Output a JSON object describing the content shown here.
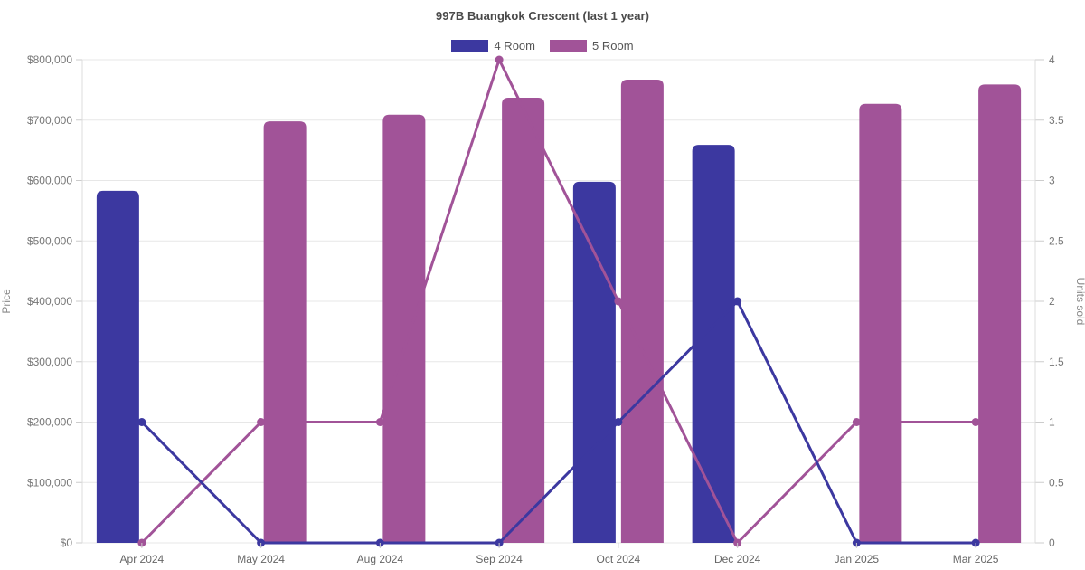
{
  "chart_data": {
    "type": "bar",
    "title": "997B Buangkok Crescent (last 1 year)",
    "categories": [
      "Apr 2024",
      "May 2024",
      "Aug 2024",
      "Sep 2024",
      "Oct 2024",
      "Dec 2024",
      "Jan 2025",
      "Mar 2025"
    ],
    "series": [
      {
        "name": "4 Room",
        "render": "bar",
        "axis": "price",
        "color": "#3c38a0",
        "values": [
          583000,
          null,
          null,
          null,
          598000,
          659000,
          null,
          null
        ]
      },
      {
        "name": "5 Room",
        "render": "bar",
        "axis": "price",
        "color": "#a15398",
        "values": [
          null,
          698000,
          709000,
          737000,
          767000,
          null,
          727000,
          759000
        ]
      },
      {
        "name": "4 Room",
        "render": "line",
        "axis": "units",
        "color": "#3c38a0",
        "values": [
          1,
          0,
          0,
          0,
          1,
          2,
          0,
          0
        ]
      },
      {
        "name": "5 Room",
        "render": "line",
        "axis": "units",
        "color": "#a15398",
        "values": [
          0,
          1,
          1,
          4,
          2,
          0,
          1,
          1
        ]
      }
    ],
    "axes": {
      "price": {
        "label": "Price",
        "side": "left",
        "min": 0,
        "max": 800000,
        "tick_labels": [
          "$0",
          "$100,000",
          "$200,000",
          "$300,000",
          "$400,000",
          "$500,000",
          "$600,000",
          "$700,000",
          "$800,000"
        ]
      },
      "units": {
        "label": "Units sold",
        "side": "right",
        "min": 0,
        "max": 4,
        "tick_labels": [
          "0",
          "0.5",
          "1",
          "1.5",
          "2",
          "2.5",
          "3",
          "3.5",
          "4"
        ]
      }
    },
    "legend": {
      "position": "top",
      "items": [
        {
          "label": "4 Room",
          "color": "#3c38a0"
        },
        {
          "label": "5 Room",
          "color": "#a15398"
        }
      ]
    },
    "grid": true,
    "colors": {
      "grid_line": "#e7e7e7",
      "axis_line": "#dcdcdc",
      "tick_mark": "#cccccc"
    }
  }
}
